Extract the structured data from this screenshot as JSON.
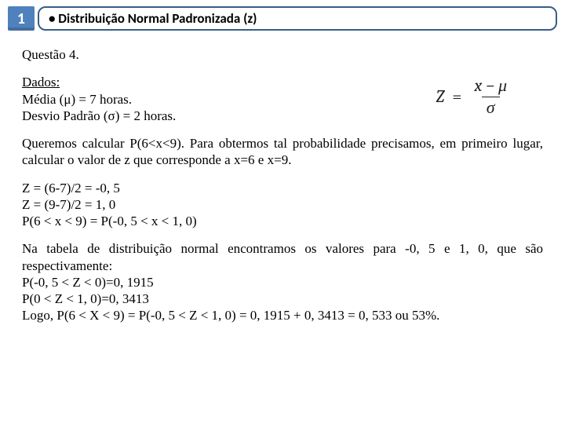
{
  "header": {
    "badge_number": "1",
    "title": "• Distribuição Normal Padronizada (z)"
  },
  "content": {
    "question_label": "Questão 4.",
    "dados": {
      "heading": "Dados:",
      "line1": "Média (μ) = 7 horas.",
      "line2": "Desvio Padrão (σ) = 2 horas."
    },
    "formula": {
      "lhs": "Z",
      "eq": "=",
      "numerator": "x − μ",
      "denominator": "σ"
    },
    "para1": "Queremos calcular P(6<x<9). Para obtermos tal probabilidade precisamos, em primeiro lugar, calcular o valor de z que corresponde a x=6 e x=9.",
    "calc": {
      "l1": "Z = (6-7)/2 = -0, 5",
      "l2": "Z = (9-7)/2 = 1, 0",
      "l3": "P(6 < x < 9) = P(-0, 5 < x < 1, 0)"
    },
    "para2_intro": "Na tabela de distribuição normal encontramos os valores para -0, 5 e 1, 0, que são respectivamente:",
    "result": {
      "l1": "P(-0, 5 < Z < 0)=0, 1915",
      "l2": "P(0 < Z < 1, 0)=0, 3413",
      "l3": "Logo, P(6 < X < 9) = P(-0, 5 < Z < 1, 0) = 0, 1915 + 0, 3413 = 0, 533 ou 53%."
    }
  },
  "colors": {
    "badge_bg": "#4f81bd",
    "title_border": "#385d8a",
    "text": "#000000",
    "page_bg": "#ffffff"
  }
}
